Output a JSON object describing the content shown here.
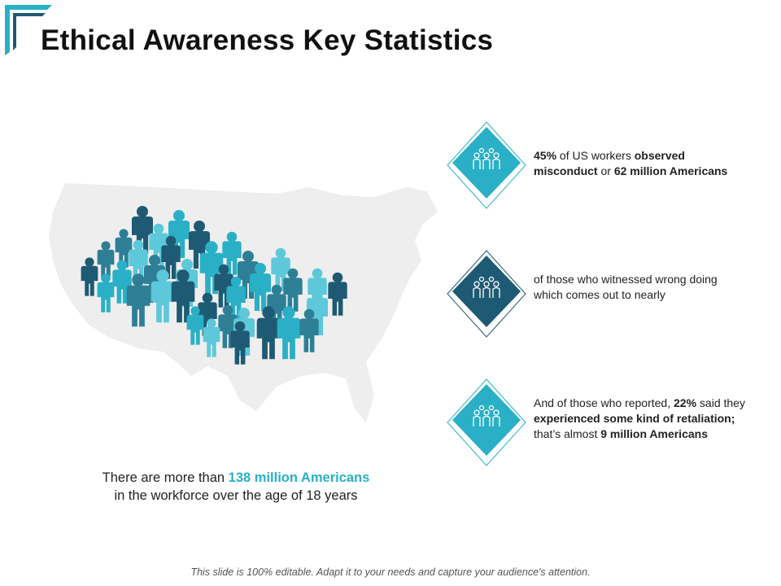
{
  "slide": {
    "title": "Ethical Awareness Key Statistics",
    "caption": {
      "pre": "There are more than ",
      "highlight": "138 million Americans",
      "post": "in the workforce over the age of 18 years"
    },
    "stats": [
      {
        "icon": "people-group-icon",
        "color": "#2ab0c6",
        "parts": [
          {
            "t": "45%",
            "b": true
          },
          {
            "t": " of US workers ",
            "b": false
          },
          {
            "t": "observed misconduct",
            "b": true
          },
          {
            "t": " or ",
            "b": false
          },
          {
            "t": "62 million Americans",
            "b": true
          }
        ]
      },
      {
        "icon": "people-group-icon",
        "color": "#1e5a73",
        "parts": [
          {
            "t": "of those who witnessed wrong doing which comes out to nearly",
            "b": false
          }
        ]
      },
      {
        "icon": "people-group-icon",
        "color": "#2ab0c6",
        "parts": [
          {
            "t": "And of those who reported, ",
            "b": false
          },
          {
            "t": "22%",
            "b": true
          },
          {
            "t": " said they ",
            "b": false
          },
          {
            "t": "experienced some kind of retaliation;",
            "b": true
          },
          {
            "t": " that’s almost ",
            "b": false
          },
          {
            "t": "9 million Americans",
            "b": true
          }
        ]
      }
    ],
    "footer": "This slide is 100% editable. Adapt it to your needs and capture your audience's attention.",
    "colors": {
      "accent": "#2ab0c6",
      "dark": "#1e5a73",
      "map": "#eeeeee"
    }
  }
}
